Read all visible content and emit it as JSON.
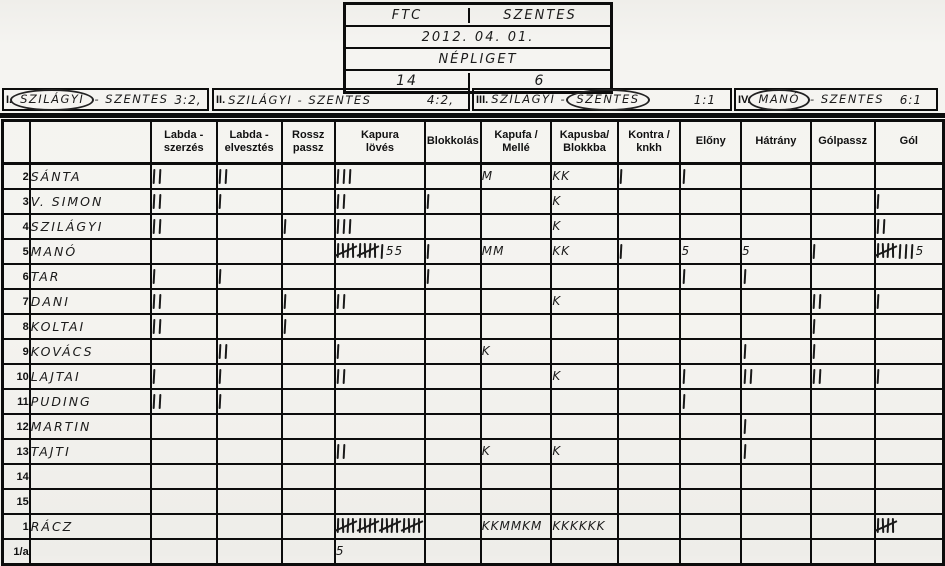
{
  "header": {
    "home_team": "FTC",
    "away_team": "SZENTES",
    "date": "2012. 04. 01.",
    "venue": "NÉPLIGET",
    "home_score": "14",
    "away_score": "6"
  },
  "quarters": [
    {
      "num": "I.",
      "home": "SZILÁGYI",
      "away": "SZENTES",
      "score": "3:2,",
      "circle": "home"
    },
    {
      "num": "II.",
      "home": "SZILÁGYI",
      "away": "SZENTES",
      "score": "4:2,",
      "circle": "none"
    },
    {
      "num": "III.",
      "home": "SZILÁGYI",
      "away": "SZENTES",
      "score": "1:1",
      "circle": "away"
    },
    {
      "num": "IV.",
      "home": "MANÓ",
      "away": "SZENTES",
      "score": "6:1",
      "circle": "home"
    }
  ],
  "table": {
    "columns": [
      {
        "l1": "Labda -",
        "l2": "szerzés"
      },
      {
        "l1": "Labda -",
        "l2": "elvesztés"
      },
      {
        "l1": "Rossz",
        "l2": "passz"
      },
      {
        "l1": "Kapura",
        "l2": "lövés"
      },
      {
        "l1": "Blokkolás",
        "l2": ""
      },
      {
        "l1": "Kapufa /",
        "l2": "Mellé"
      },
      {
        "l1": "Kapusba/",
        "l2": "Blokkba"
      },
      {
        "l1": "Kontra /",
        "l2": "knkh"
      },
      {
        "l1": "Előny",
        "l2": ""
      },
      {
        "l1": "Hátrány",
        "l2": ""
      },
      {
        "l1": "Gólpassz",
        "l2": ""
      },
      {
        "l1": "Gól",
        "l2": ""
      }
    ],
    "rows": [
      {
        "num": "2",
        "name": "SÁNTA",
        "cells": [
          "#2",
          "#2",
          "",
          "#3",
          "",
          "M",
          "KK",
          "#1",
          "#1",
          "",
          "",
          ""
        ]
      },
      {
        "num": "3",
        "name": "V. SIMON",
        "cells": [
          "#2",
          "#1",
          "",
          "#2",
          "#1",
          "",
          "K",
          "",
          "",
          "",
          "",
          "#1"
        ]
      },
      {
        "num": "4",
        "name": "SZILÁGYI",
        "cells": [
          "#2",
          "",
          "#1",
          "#3",
          "",
          "",
          "K",
          "",
          "",
          "",
          "",
          "#2"
        ]
      },
      {
        "num": "5",
        "name": "MANÓ",
        "cells": [
          "",
          "",
          "",
          "% % #1 55",
          "#1",
          "MM",
          "KK",
          "#1",
          "5",
          "5",
          "#1",
          "% #3 5"
        ]
      },
      {
        "num": "6",
        "name": "TAR",
        "cells": [
          "#1",
          "#1",
          "",
          "",
          "#1",
          "",
          "",
          "",
          "#1",
          "#1",
          "",
          ""
        ]
      },
      {
        "num": "7",
        "name": "DANI",
        "cells": [
          "#2",
          "",
          "#1",
          "#2",
          "",
          "",
          "K",
          "",
          "",
          "",
          "#2",
          "#1"
        ]
      },
      {
        "num": "8",
        "name": "KOLTAI",
        "cells": [
          "#2",
          "",
          "#1",
          "",
          "",
          "",
          "",
          "",
          "",
          "",
          "#1",
          ""
        ]
      },
      {
        "num": "9",
        "name": "KOVÁCS",
        "cells": [
          "",
          "#2",
          "",
          "#1",
          "",
          "K",
          "",
          "",
          "",
          "#1",
          "#1",
          ""
        ]
      },
      {
        "num": "10",
        "name": "LAJTAI",
        "cells": [
          "#1",
          "#1",
          "",
          "#2",
          "",
          "",
          "K",
          "",
          "#1",
          "#2",
          "#2",
          "#1"
        ]
      },
      {
        "num": "11",
        "name": "PUDING",
        "cells": [
          "#2",
          "#1",
          "",
          "",
          "",
          "",
          "",
          "",
          "#1",
          "",
          "",
          ""
        ]
      },
      {
        "num": "12",
        "name": "MARTIN",
        "cells": [
          "",
          "",
          "",
          "",
          "",
          "",
          "",
          "",
          "",
          "#1",
          "",
          ""
        ]
      },
      {
        "num": "13",
        "name": "TAJTI",
        "cells": [
          "",
          "",
          "",
          "#2",
          "",
          "K",
          "K",
          "",
          "",
          "#1",
          "",
          ""
        ]
      },
      {
        "num": "14",
        "name": "",
        "cells": [
          "",
          "",
          "",
          "",
          "",
          "",
          "",
          "",
          "",
          "",
          "",
          ""
        ]
      },
      {
        "num": "15",
        "name": "",
        "cells": [
          "",
          "",
          "",
          "",
          "",
          "",
          "",
          "",
          "",
          "",
          "",
          ""
        ]
      },
      {
        "num": "1",
        "name": "RÁCZ",
        "cells": [
          "",
          "",
          "",
          "% % % %",
          "",
          "KKMMKM",
          "KKKKKK",
          "",
          "",
          "",
          "",
          "%"
        ]
      },
      {
        "num": "1/a",
        "name": "",
        "cells": [
          "",
          "",
          "",
          "5",
          "",
          "",
          "",
          "",
          "",
          "",
          "",
          ""
        ]
      }
    ]
  }
}
